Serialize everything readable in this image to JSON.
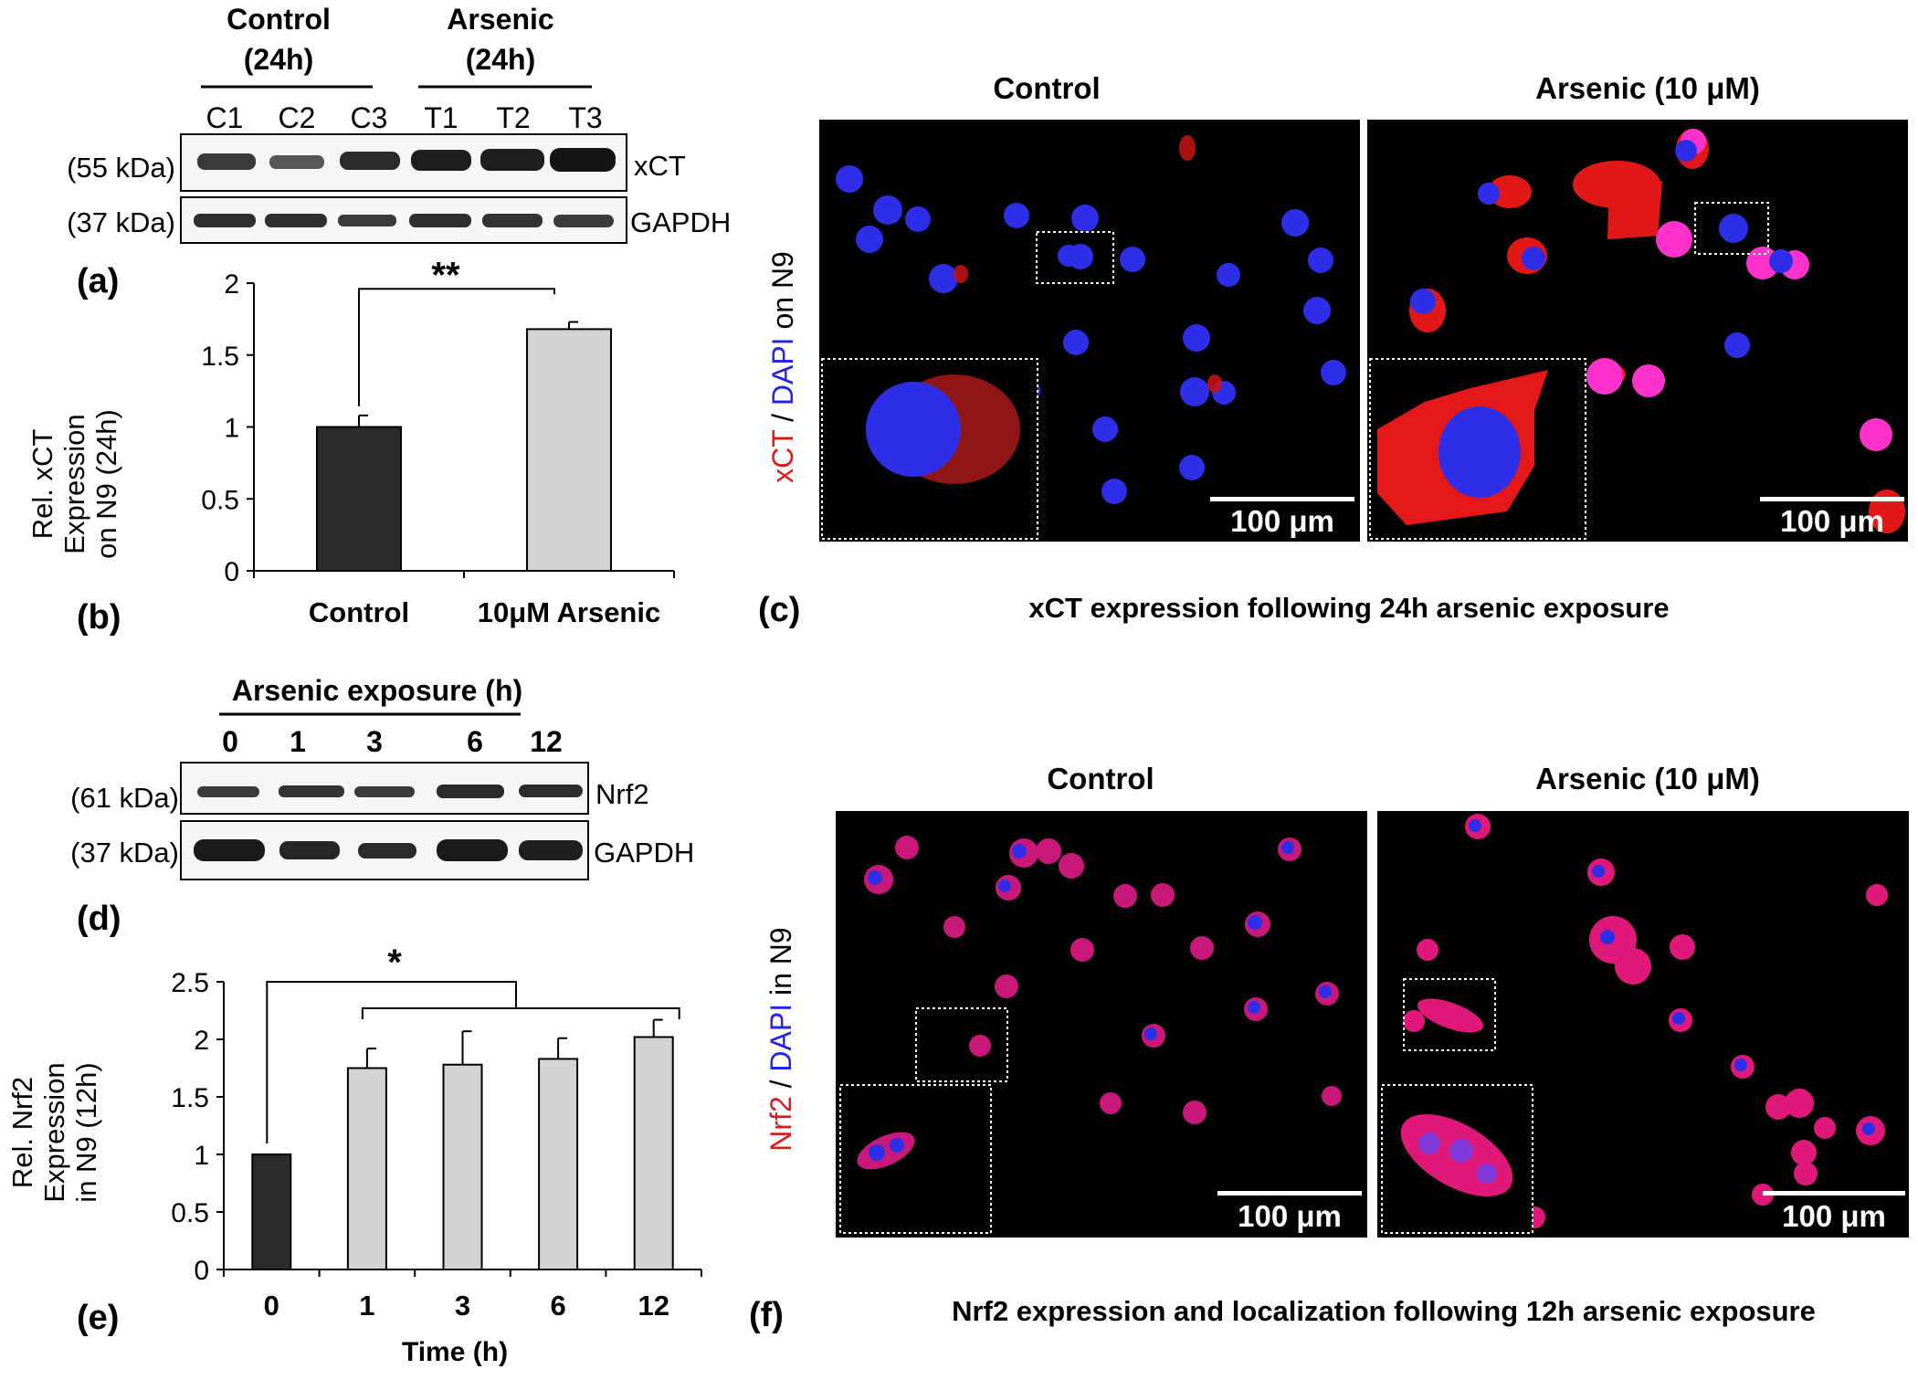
{
  "colors": {
    "control_bar": "#2b2b2b",
    "arsenic_bar": "#d3d3d3",
    "xct_stain": "#e01818",
    "dapi_stain": "#2222e8",
    "micrograph_bg": "#000000"
  },
  "panel_labels": {
    "a": "(a)",
    "b": "(b)",
    "c": "(c)",
    "d": "(d)",
    "e": "(e)",
    "f": "(f)"
  },
  "panel_a": {
    "group_control": "Control",
    "group_control_time": "(24h)",
    "group_arsenic": "Arsenic",
    "group_arsenic_time": "(24h)",
    "lanes": [
      "C1",
      "C2",
      "C3",
      "T1",
      "T2",
      "T3"
    ],
    "rows": [
      {
        "kda": "(55 kDa)",
        "protein": "xCT"
      },
      {
        "kda": "(37 kDa)",
        "protein": "GAPDH"
      }
    ]
  },
  "panel_c": {
    "col_control": "Control",
    "col_arsenic": "Arsenic (10 μM)",
    "stain_red": "xCT",
    "stain_sep": " / ",
    "stain_blue": "DAPI",
    "stain_suffix": " on N9",
    "scalebar": "100 μm",
    "caption": "xCT expression following 24h arsenic exposure"
  },
  "panel_d": {
    "header": "Arsenic exposure (h)",
    "lanes": [
      "0",
      "1",
      "3",
      "6",
      "12"
    ],
    "rows": [
      {
        "kda": "(61 kDa)",
        "protein": "Nrf2"
      },
      {
        "kda": "(37 kDa)",
        "protein": "GAPDH"
      }
    ]
  },
  "panel_f": {
    "col_control": "Control",
    "col_arsenic": "Arsenic (10 μM)",
    "stain_red": "Nrf2",
    "stain_sep": " / ",
    "stain_blue": "DAPI",
    "stain_suffix": " in N9",
    "scalebar": "100 μm",
    "caption": "Nrf2 expression and localization following 12h arsenic exposure"
  },
  "chart_data": [
    {
      "id": "b",
      "type": "bar",
      "categories": [
        "Control",
        "10μM Arsenic"
      ],
      "values": [
        1.0,
        1.68
      ],
      "errors": [
        0.08,
        0.05
      ],
      "ylabel": [
        "Rel. xCT",
        "Expression",
        "on N9 (24h)"
      ],
      "xlabel": "",
      "ylim": [
        0,
        2
      ],
      "yticks": [
        0,
        0.5,
        1,
        1.5,
        2
      ],
      "ytick_labels": [
        "0",
        "0.5",
        "1",
        "1.5",
        "2"
      ],
      "significance": "**",
      "grid": false
    },
    {
      "id": "e",
      "type": "bar",
      "categories": [
        "0",
        "1",
        "3",
        "6",
        "12"
      ],
      "values": [
        1.0,
        1.75,
        1.78,
        1.83,
        2.02
      ],
      "errors": [
        0,
        0.17,
        0.29,
        0.18,
        0.15
      ],
      "ylabel": [
        "Rel. Nrf2",
        "Expression",
        "in N9 (12h)"
      ],
      "xlabel": "Time (h)",
      "ylim": [
        0,
        2.5
      ],
      "yticks": [
        0,
        0.5,
        1,
        1.5,
        2,
        2.5
      ],
      "ytick_labels": [
        "0",
        "0.5",
        "1",
        "1.5",
        "2",
        "2.5"
      ],
      "significance": "*",
      "grid": false
    }
  ]
}
